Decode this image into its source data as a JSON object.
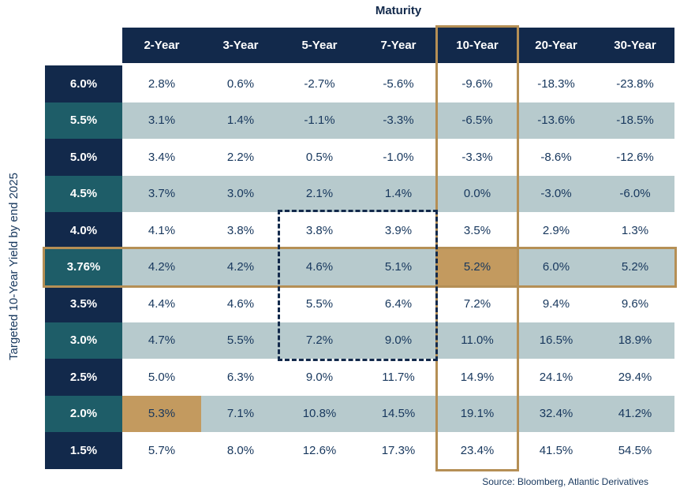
{
  "chart_data": {
    "type": "table",
    "title": "Maturity",
    "ylabel": "Targeted 10-Year Yield by end 2025",
    "source": "Source: Bloomberg, Atlantic Derivatives",
    "columns": [
      "2-Year",
      "3-Year",
      "5-Year",
      "7-Year",
      "10-Year",
      "20-Year",
      "30-Year"
    ],
    "row_labels": [
      "6.0%",
      "5.5%",
      "5.0%",
      "4.5%",
      "4.0%",
      "3.76%",
      "3.5%",
      "3.0%",
      "2.5%",
      "2.0%",
      "1.5%"
    ],
    "values": [
      [
        "2.8%",
        "0.6%",
        "-2.7%",
        "-5.6%",
        "-9.6%",
        "-18.3%",
        "-23.8%"
      ],
      [
        "3.1%",
        "1.4%",
        "-1.1%",
        "-3.3%",
        "-6.5%",
        "-13.6%",
        "-18.5%"
      ],
      [
        "3.4%",
        "2.2%",
        "0.5%",
        "-1.0%",
        "-3.3%",
        "-8.6%",
        "-12.6%"
      ],
      [
        "3.7%",
        "3.0%",
        "2.1%",
        "1.4%",
        "0.0%",
        "-3.0%",
        "-6.0%"
      ],
      [
        "4.1%",
        "3.8%",
        "3.8%",
        "3.9%",
        "3.5%",
        "2.9%",
        "1.3%"
      ],
      [
        "4.2%",
        "4.2%",
        "4.6%",
        "5.1%",
        "5.2%",
        "6.0%",
        "5.2%"
      ],
      [
        "4.4%",
        "4.6%",
        "5.5%",
        "6.4%",
        "7.2%",
        "9.4%",
        "9.6%"
      ],
      [
        "4.7%",
        "5.5%",
        "7.2%",
        "9.0%",
        "11.0%",
        "16.5%",
        "18.9%"
      ],
      [
        "5.0%",
        "6.3%",
        "9.0%",
        "11.7%",
        "14.9%",
        "24.1%",
        "29.4%"
      ],
      [
        "5.3%",
        "7.1%",
        "10.8%",
        "14.5%",
        "19.1%",
        "32.4%",
        "41.2%"
      ],
      [
        "5.7%",
        "8.0%",
        "12.6%",
        "17.3%",
        "23.4%",
        "41.5%",
        "54.5%"
      ]
    ],
    "highlights": {
      "gold_filled_cells": [
        {
          "row": "3.76%",
          "column": "10-Year"
        },
        {
          "row": "2.0%",
          "column": "2-Year"
        }
      ],
      "gold_outlined_column": "10-Year",
      "gold_outlined_row": "3.76%",
      "dashed_outline": {
        "columns": [
          "5-Year",
          "7-Year"
        ],
        "rows": [
          "4.0%",
          "3.76%",
          "3.5%",
          "3.0%"
        ]
      }
    },
    "colors": {
      "navy": "#12294B",
      "teal": "#1E5D68",
      "light_blue": "#B7CACD",
      "gold": "#C39A5F",
      "gold_border": "#B58F55",
      "cell_text": "#17375D"
    },
    "layout": {
      "grid": "off",
      "legend": "none"
    }
  }
}
